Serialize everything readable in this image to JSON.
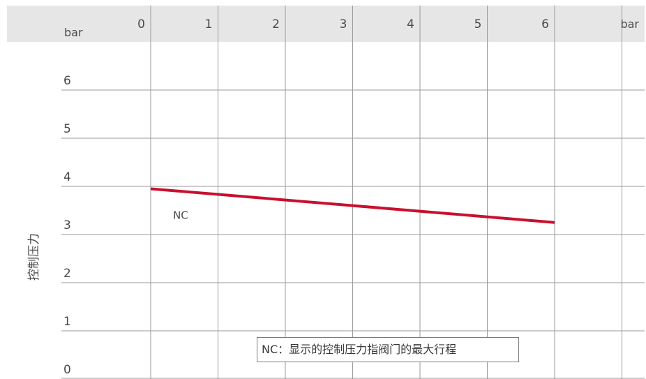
{
  "chart_data": {
    "type": "line",
    "x": [
      0,
      6
    ],
    "series": [
      {
        "name": "NC",
        "values": [
          3.95,
          3.25
        ],
        "color": "#c8102e"
      }
    ],
    "xlim": [
      0,
      6
    ],
    "ylim": [
      0,
      6
    ],
    "x_ticks": [
      "0",
      "1",
      "2",
      "3",
      "4",
      "5",
      "6"
    ],
    "y_ticks": [
      "0",
      "1",
      "2",
      "3",
      "4",
      "5",
      "6"
    ],
    "x_unit_left": "bar",
    "x_unit_right": "bar",
    "ylabel": "控制压力",
    "annotation": "NC：显示的控制压力指阀门的最大行程",
    "grid": true,
    "header_band_color": "#e6e6e6",
    "grid_color": "#9a9a9a"
  }
}
